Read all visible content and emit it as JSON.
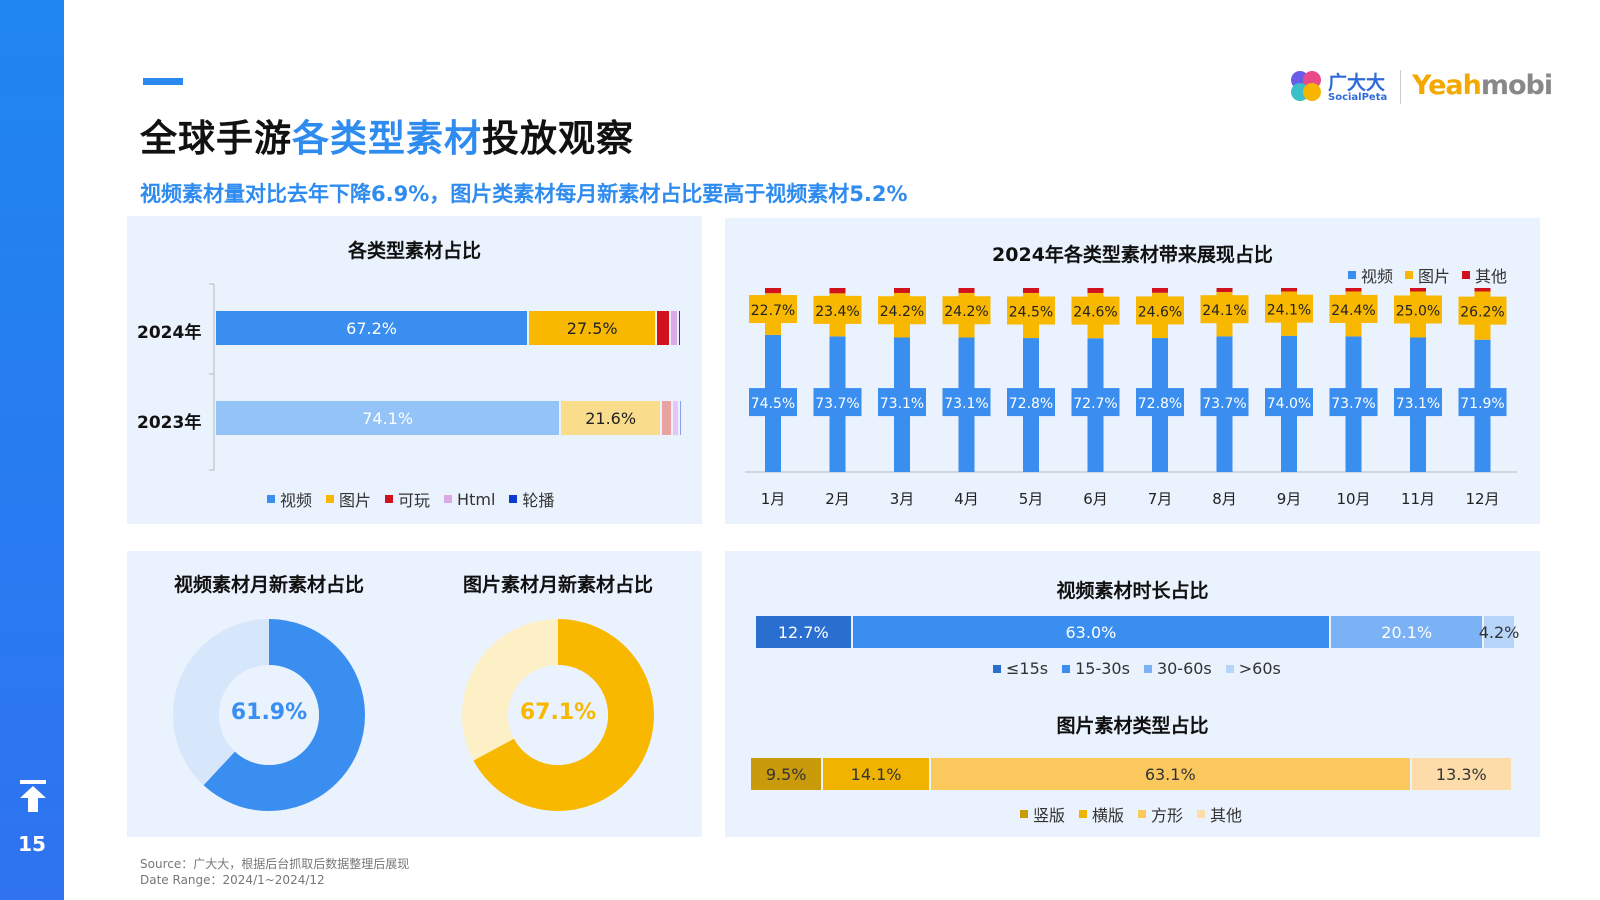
{
  "page": {
    "number": "15",
    "title_part1": "全球手游",
    "title_highlight": "各类型素材",
    "title_part2": "投放观察",
    "subtitle": "视频素材量对比去年下降6.9%，图片类素材每月新素材占比要高于视频素材5.2%",
    "logo_ggd": "广大大",
    "logo_socialpeta": "SocialPeta",
    "logo_yeah": "Yeah",
    "logo_mobi": "mobi",
    "source": "Source：广大大，根据后台抓取后数据整理后展现",
    "date_range": "Date Range：2024/1~2024/12"
  },
  "colors": {
    "video": "#3a8ef0",
    "image": "#f8b800",
    "playable": "#d1121c",
    "html": "#d9a9e8",
    "carousel": "#0a3bd6"
  },
  "chart_data": [
    {
      "id": "type_share",
      "type": "bar",
      "orientation": "horizontal-stacked",
      "title": "各类型素材占比",
      "categories": [
        "2024年",
        "2023年"
      ],
      "series": [
        {
          "name": "视频",
          "values": [
            67.2,
            74.1
          ],
          "labels": [
            "67.2%",
            "74.1%"
          ]
        },
        {
          "name": "图片",
          "values": [
            27.5,
            21.6
          ],
          "labels": [
            "27.5%",
            "21.6%"
          ]
        },
        {
          "name": "可玩",
          "values": [
            2.9,
            2.4
          ],
          "labels": [
            "",
            ""
          ]
        },
        {
          "name": "Html",
          "values": [
            1.8,
            1.4
          ],
          "labels": [
            "",
            ""
          ]
        },
        {
          "name": "轮播",
          "values": [
            0.6,
            0.5
          ],
          "labels": [
            "",
            ""
          ]
        }
      ],
      "colors_2023": [
        "#93c3f7",
        "#f9dc8c",
        "#e8a2a2",
        "#e6c6f0",
        "#8aa0ee"
      ],
      "legend": "bottom"
    },
    {
      "id": "monthly_exposure",
      "type": "bar",
      "orientation": "vertical-stacked",
      "title": "2024年各类型素材带来展现占比",
      "categories": [
        "1月",
        "2月",
        "3月",
        "4月",
        "5月",
        "6月",
        "7月",
        "8月",
        "9月",
        "10月",
        "11月",
        "12月"
      ],
      "series": [
        {
          "name": "视频",
          "values": [
            74.5,
            73.7,
            73.1,
            73.1,
            72.8,
            72.7,
            72.8,
            73.7,
            74.0,
            73.7,
            73.1,
            71.9
          ],
          "labels": [
            "74.5%",
            "73.7%",
            "73.1%",
            "73.1%",
            "72.8%",
            "72.7%",
            "72.8%",
            "73.7%",
            "74.0%",
            "73.7%",
            "73.1%",
            "71.9%"
          ]
        },
        {
          "name": "图片",
          "values": [
            22.7,
            23.4,
            24.2,
            24.2,
            24.5,
            24.6,
            24.6,
            24.1,
            24.1,
            24.4,
            25.0,
            26.2
          ],
          "labels": [
            "22.7%",
            "23.4%",
            "24.2%",
            "24.2%",
            "24.5%",
            "24.6%",
            "24.6%",
            "24.1%",
            "24.1%",
            "24.4%",
            "25.0%",
            "26.2%"
          ]
        },
        {
          "name": "其他",
          "values": [
            2.8,
            2.9,
            2.7,
            2.7,
            2.7,
            2.7,
            2.6,
            2.2,
            1.9,
            1.9,
            1.9,
            1.9
          ]
        }
      ],
      "legend": "top-right"
    },
    {
      "id": "video_new_share",
      "type": "pie",
      "title": "视频素材月新素材占比",
      "value": 61.9,
      "label": "61.9%",
      "colors": [
        "#3a8ef0",
        "#d6e6fb"
      ]
    },
    {
      "id": "image_new_share",
      "type": "pie",
      "title": "图片素材月新素材占比",
      "value": 67.1,
      "label": "67.1%",
      "colors": [
        "#f8b800",
        "#fdf0c7"
      ]
    },
    {
      "id": "video_duration",
      "type": "bar",
      "orientation": "horizontal-stacked",
      "title": "视频素材时长占比",
      "categories": [
        "≤15s",
        "15-30s",
        "30-60s",
        ">60s"
      ],
      "values": [
        12.7,
        63.0,
        20.1,
        4.2
      ],
      "labels": [
        "12.7%",
        "63.0%",
        "20.1%",
        "4.2%"
      ],
      "colors": [
        "#2a6fcf",
        "#3a8ef0",
        "#7ab2f5",
        "#b7d4fa"
      ],
      "legend": "bottom"
    },
    {
      "id": "image_format",
      "type": "bar",
      "orientation": "horizontal-stacked",
      "title": "图片素材类型占比",
      "categories": [
        "竖版",
        "横版",
        "方形",
        "其他"
      ],
      "values": [
        9.5,
        14.1,
        63.1,
        13.3
      ],
      "labels": [
        "9.5%",
        "14.1%",
        "63.1%",
        "13.3%"
      ],
      "colors": [
        "#c99a0a",
        "#f0b400",
        "#fbc85e",
        "#fddcaa"
      ],
      "legend": "bottom"
    }
  ]
}
